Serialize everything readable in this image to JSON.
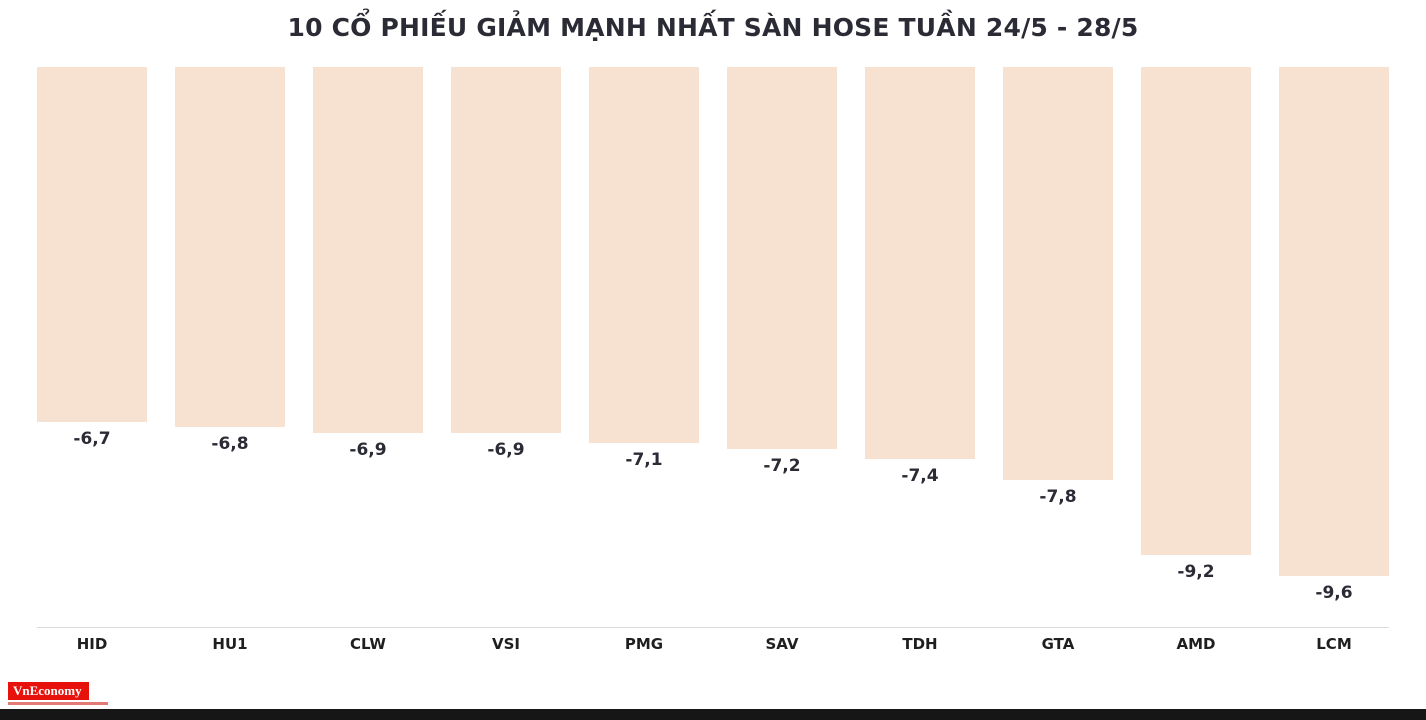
{
  "title": "10 CỔ PHIẾU GIẢM MẠNH NHẤT SÀN HOSE TUẦN 24/5 - 28/5",
  "chart_data": {
    "type": "bar",
    "orientation": "vertical-hanging-from-top",
    "title": "10 CỔ PHIẾU GIẢM MẠNH NHẤT SÀN HOSE TUẦN 24/5 - 28/5",
    "categories": [
      "HID",
      "HU1",
      "CLW",
      "VSI",
      "PMG",
      "SAV",
      "TDH",
      "GTA",
      "AMD",
      "LCM"
    ],
    "values": [
      -6.7,
      -6.8,
      -6.9,
      -6.9,
      -7.1,
      -7.2,
      -7.4,
      -7.8,
      -9.2,
      -9.6
    ],
    "value_labels": [
      "-6,7",
      "-6,8",
      "-6,9",
      "-6,9",
      "-7,1",
      "-7,2",
      "-7,4",
      "-7,8",
      "-9,2",
      "-9,6"
    ],
    "xlabel": "",
    "ylabel": "",
    "ylim": [
      0,
      -9.6
    ],
    "grid": false,
    "legend": "none",
    "bar_color": "#f7e2d1",
    "label_color": "#2b2b35"
  },
  "branding": {
    "logo_text": "VnEconomy",
    "logo_bg": "#e8120c"
  }
}
